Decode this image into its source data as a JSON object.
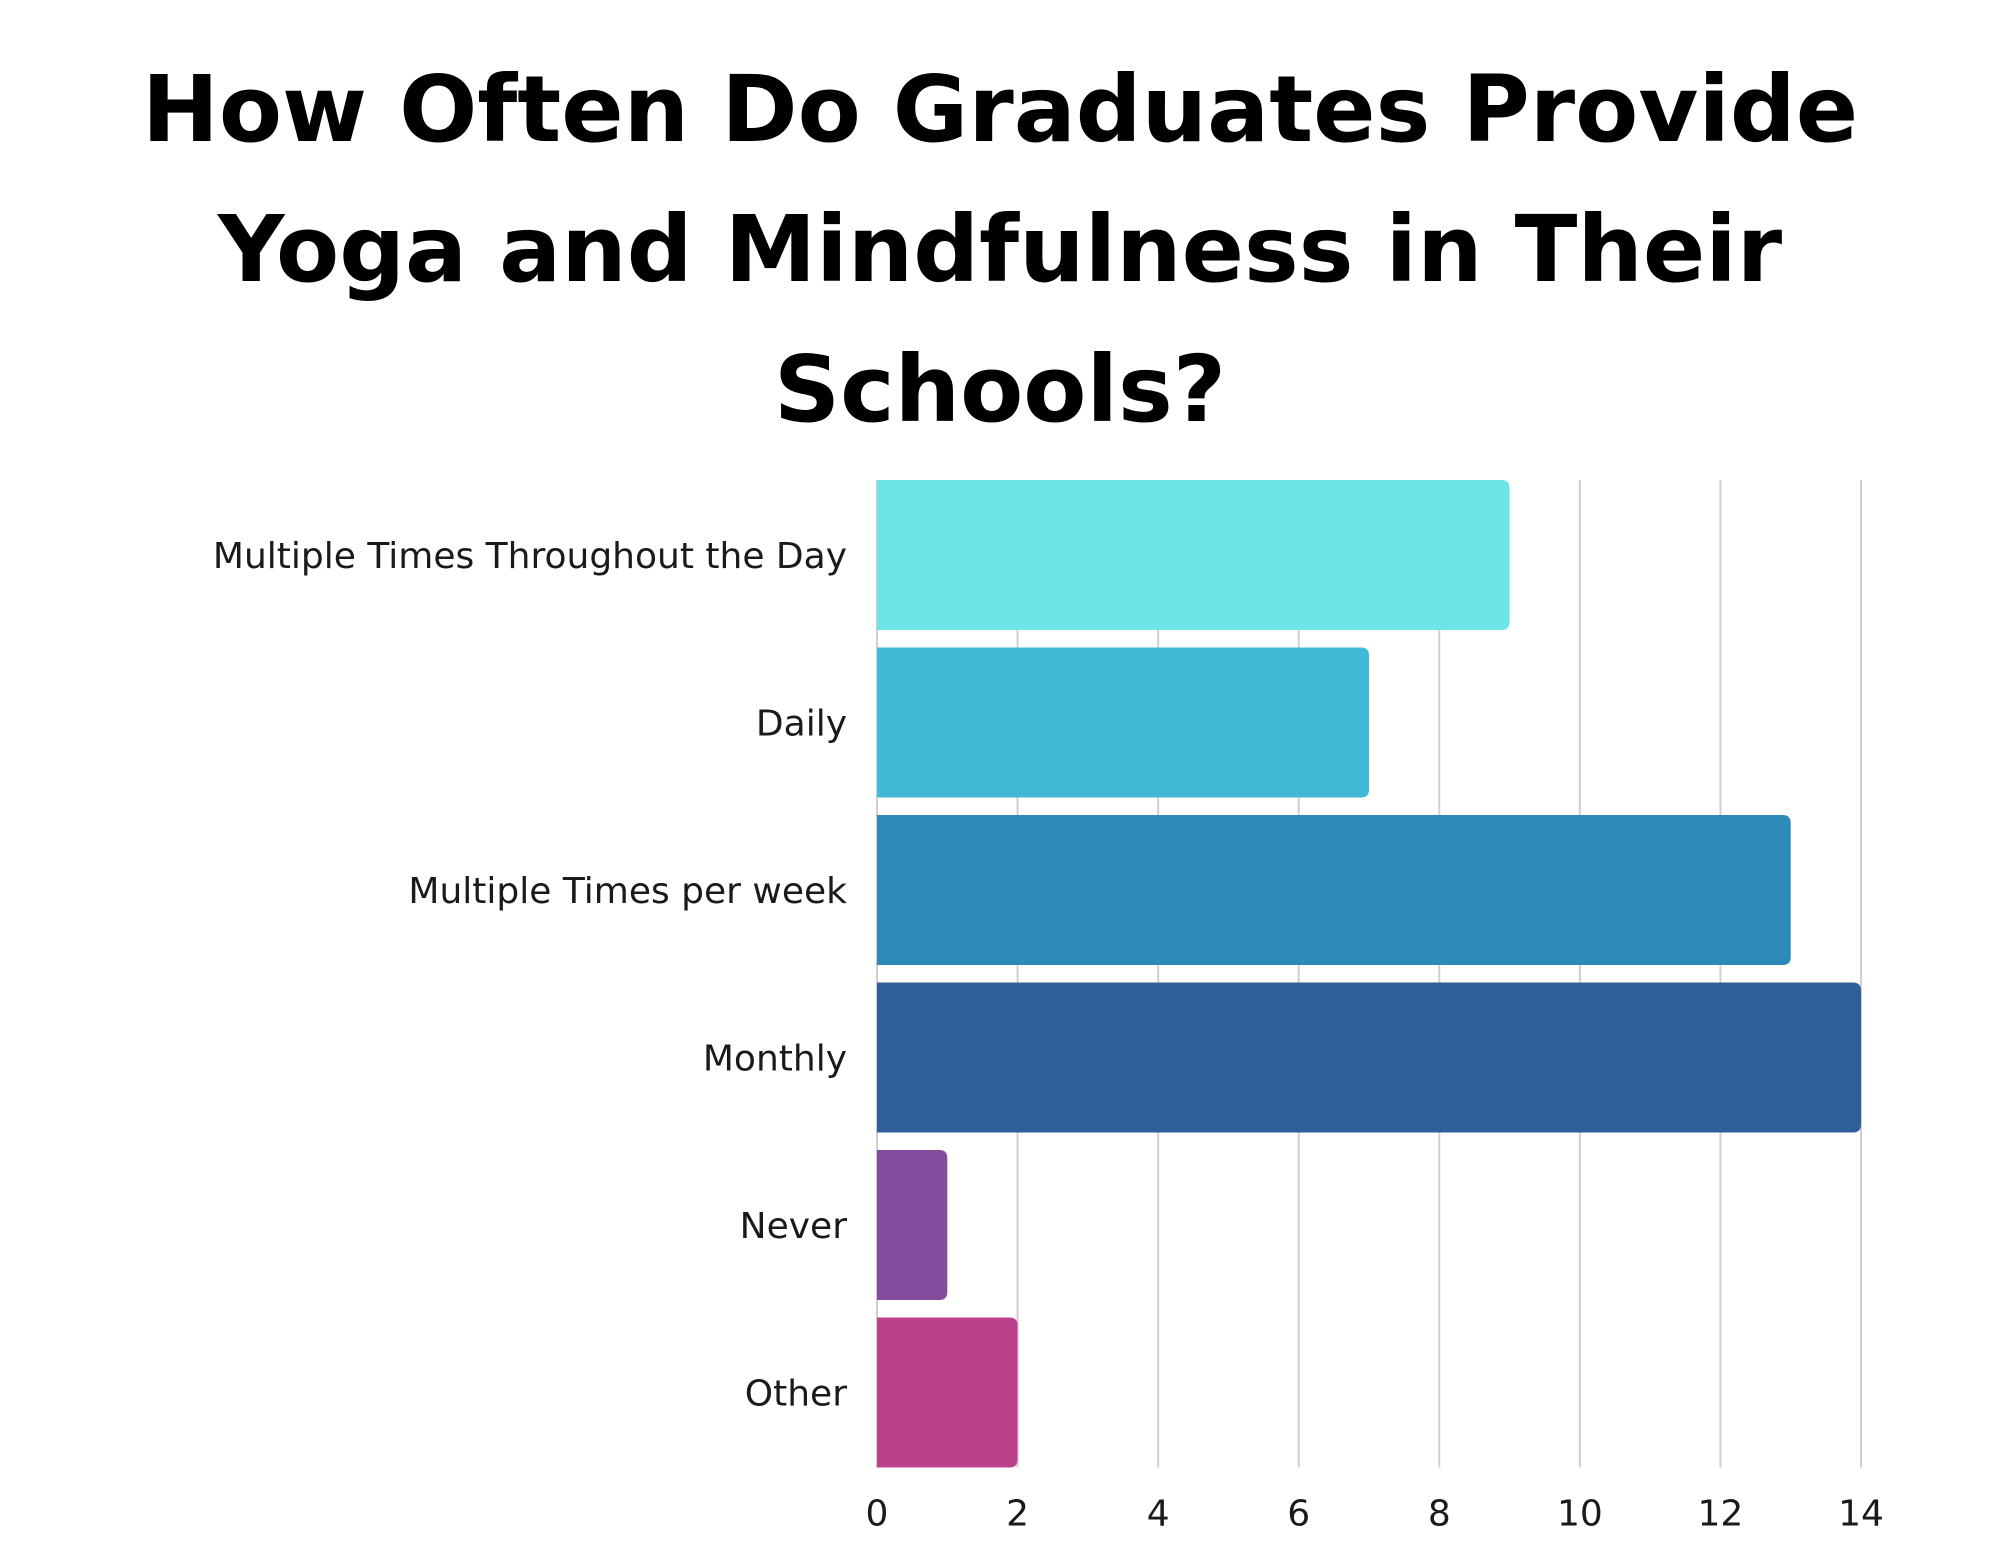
{
  "chart_data": {
    "type": "bar",
    "orientation": "horizontal",
    "title": "How Often Do Graduates Provide Yoga and Mindfulness in Their Schools?",
    "xlabel": "",
    "ylabel": "",
    "categories": [
      "Multiple Times Throughout the Day",
      "Daily",
      "Multiple Times per week",
      "Monthly",
      "Never",
      "Other"
    ],
    "values": [
      9,
      7,
      13,
      14,
      1,
      2
    ],
    "colors": [
      "#6ce5e8",
      "#41b8d5",
      "#2d8bba",
      "#2f5f98",
      "#844a9b",
      "#bc408b"
    ],
    "xlim": [
      0,
      14
    ],
    "ticks": [
      0,
      2,
      4,
      6,
      8,
      10,
      12,
      14
    ],
    "grid": true,
    "legend": "none"
  }
}
